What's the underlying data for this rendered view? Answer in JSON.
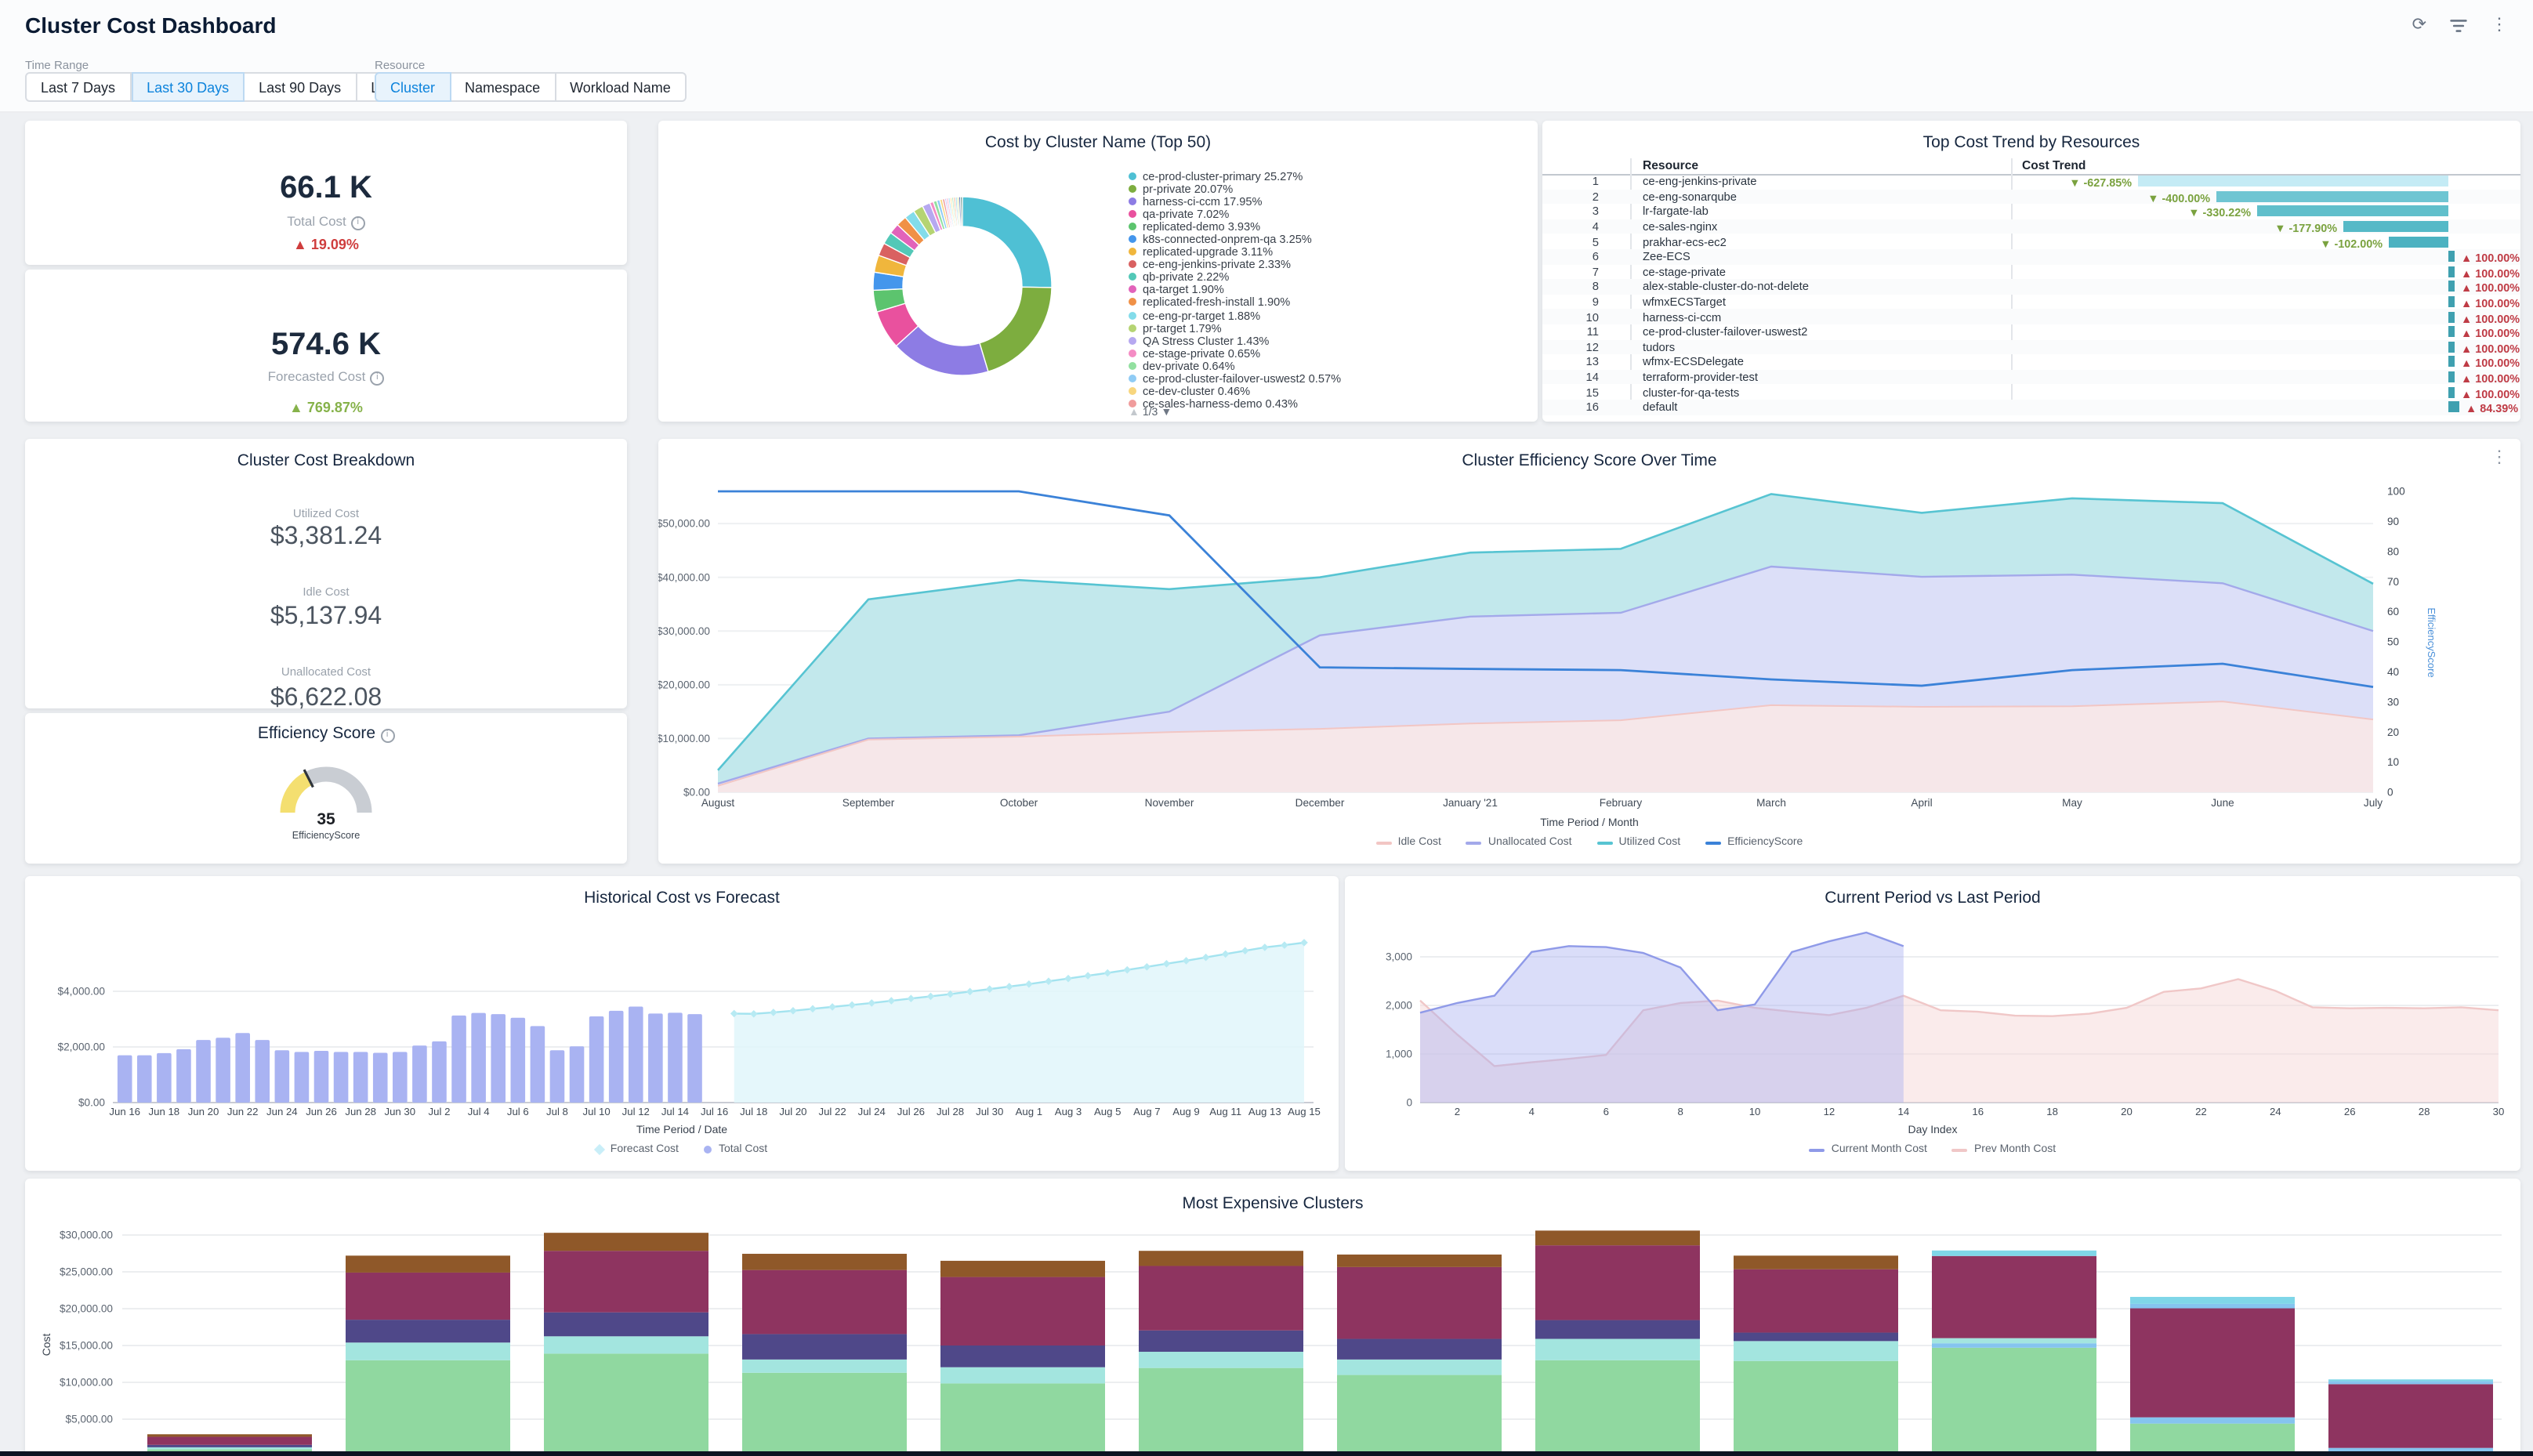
{
  "header": {
    "title": "Cluster Cost Dashboard"
  },
  "top_actions": {
    "refresh": "refresh-icon",
    "filter": "filter-icon",
    "menu": "kebab-menu-icon"
  },
  "filters": {
    "time_range": {
      "label": "Time Range",
      "options": [
        "Last 7 Days",
        "Last 30 Days",
        "Last 90 Days",
        "Last year"
      ],
      "selected": "Last 30 Days"
    },
    "resource": {
      "label": "Resource",
      "options": [
        "Cluster",
        "Namespace",
        "Workload Name"
      ],
      "selected": "Cluster"
    }
  },
  "kpis": [
    {
      "value": "66.1 K",
      "label": "Total Cost",
      "delta": "19.09%",
      "delta_direction": "up",
      "delta_color": "#cf3d3d"
    },
    {
      "value": "574.6 K",
      "label": "Forecasted Cost",
      "delta": "769.87%",
      "delta_direction": "up",
      "delta_color": "#86b24a"
    }
  ],
  "donut_panel": {
    "title": "Cost by Cluster Name (Top 50)",
    "pagination": "1/3",
    "chart_data": {
      "type": "pie",
      "slices": [
        {
          "label": "ce-prod-cluster-primary",
          "pct": "25.27",
          "color": "#4fc0d4"
        },
        {
          "label": "pr-private",
          "pct": "20.07",
          "color": "#7dad3f"
        },
        {
          "label": "harness-ci-ccm",
          "pct": "17.95",
          "color": "#8d7ce4"
        },
        {
          "label": "qa-private",
          "pct": "7.02",
          "color": "#e9519e"
        },
        {
          "label": "replicated-demo",
          "pct": "3.93",
          "color": "#5cc46e"
        },
        {
          "label": "k8s-connected-onprem-qa",
          "pct": "3.25",
          "color": "#4496ec"
        },
        {
          "label": "replicated-upgrade",
          "pct": "3.11",
          "color": "#f0b63c"
        },
        {
          "label": "ce-eng-jenkins-private",
          "pct": "2.33",
          "color": "#d96161"
        },
        {
          "label": "qb-private",
          "pct": "2.22",
          "color": "#53c8b7"
        },
        {
          "label": "qa-target",
          "pct": "1.90",
          "color": "#e263ba"
        },
        {
          "label": "replicated-fresh-install",
          "pct": "1.90",
          "color": "#f09147"
        },
        {
          "label": "ce-eng-pr-target",
          "pct": "1.88",
          "color": "#83dcea"
        },
        {
          "label": "pr-target",
          "pct": "1.79",
          "color": "#b5d473"
        },
        {
          "label": "QA Stress Cluster",
          "pct": "1.43",
          "color": "#b6a8f0"
        },
        {
          "label": "ce-stage-private",
          "pct": "0.65",
          "color": "#f48cc4"
        },
        {
          "label": "dev-private",
          "pct": "0.64",
          "color": "#92e0a0"
        },
        {
          "label": "ce-prod-cluster-failover-uswest2",
          "pct": "0.57",
          "color": "#90ccf5"
        },
        {
          "label": "ce-dev-cluster",
          "pct": "0.46",
          "color": "#f8d67e"
        },
        {
          "label": "ce-sales-harness-demo",
          "pct": "0.43",
          "color": "#f09c9c"
        }
      ],
      "other_slices": [
        {
          "pct": "0.32",
          "color": "#c3b3f2"
        },
        {
          "pct": "0.32",
          "color": "#f7a1c8"
        },
        {
          "pct": "0.32",
          "color": "#9fd9f0"
        },
        {
          "pct": "0.32",
          "color": "#ffe08f"
        },
        {
          "pct": "0.32",
          "color": "#a6e6b6"
        },
        {
          "pct": "0.32",
          "color": "#f2aa80"
        },
        {
          "pct": "0.32",
          "color": "#8fd0dd"
        },
        {
          "pct": "0.32",
          "color": "#d3e08a"
        },
        {
          "pct": "0.32",
          "color": "#39539f"
        },
        {
          "pct": "0.32",
          "color": "#2d6e63"
        }
      ]
    }
  },
  "trend_table": {
    "title": "Top Cost Trend by Resources",
    "columns": [
      "Resource",
      "Cost Trend"
    ],
    "up_color": "#bf3b45",
    "down_color": "#7aa23f",
    "rows": [
      {
        "rank": 1,
        "resource": "ce-eng-jenkins-private",
        "trend": "-627.85%",
        "dir": "down",
        "bar_len": 198,
        "bar_color": "#c4ebf5"
      },
      {
        "rank": 2,
        "resource": "ce-eng-sonarqube",
        "trend": "-400.00%",
        "dir": "down",
        "bar_len": 148,
        "bar_color": "#6fc5d2"
      },
      {
        "rank": 3,
        "resource": "lr-fargate-lab",
        "trend": "-330.22%",
        "dir": "down",
        "bar_len": 122,
        "bar_color": "#60bfcb"
      },
      {
        "rank": 4,
        "resource": "ce-sales-nginx",
        "trend": "-177.90%",
        "dir": "down",
        "bar_len": 67,
        "bar_color": "#55b9c7"
      },
      {
        "rank": 5,
        "resource": "prakhar-ecs-ec2",
        "trend": "-102.00%",
        "dir": "down",
        "bar_len": 38,
        "bar_color": "#4cb2c1"
      },
      {
        "rank": 6,
        "resource": "Zee-ECS",
        "trend": "100.00%",
        "dir": "up",
        "bar_len": 4,
        "bar_color": "#3fa0b0"
      },
      {
        "rank": 7,
        "resource": "ce-stage-private",
        "trend": "100.00%",
        "dir": "up",
        "bar_len": 4,
        "bar_color": "#3fa0b0"
      },
      {
        "rank": 8,
        "resource": "alex-stable-cluster-do-not-delete",
        "trend": "100.00%",
        "dir": "up",
        "bar_len": 4,
        "bar_color": "#3fa0b0"
      },
      {
        "rank": 9,
        "resource": "wfmxECSTarget",
        "trend": "100.00%",
        "dir": "up",
        "bar_len": 4,
        "bar_color": "#3fa0b0"
      },
      {
        "rank": 10,
        "resource": "harness-ci-ccm",
        "trend": "100.00%",
        "dir": "up",
        "bar_len": 4,
        "bar_color": "#3fa0b0"
      },
      {
        "rank": 11,
        "resource": "ce-prod-cluster-failover-uswest2",
        "trend": "100.00%",
        "dir": "up",
        "bar_len": 4,
        "bar_color": "#3fa0b0"
      },
      {
        "rank": 12,
        "resource": "tudors",
        "trend": "100.00%",
        "dir": "up",
        "bar_len": 4,
        "bar_color": "#3fa0b0"
      },
      {
        "rank": 13,
        "resource": "wfmx-ECSDelegate",
        "trend": "100.00%",
        "dir": "up",
        "bar_len": 4,
        "bar_color": "#3fa0b0"
      },
      {
        "rank": 14,
        "resource": "terraform-provider-test",
        "trend": "100.00%",
        "dir": "up",
        "bar_len": 4,
        "bar_color": "#3fa0b0"
      },
      {
        "rank": 15,
        "resource": "cluster-for-qa-tests",
        "trend": "100.00%",
        "dir": "up",
        "bar_len": 4,
        "bar_color": "#3fa0b0"
      },
      {
        "rank": 16,
        "resource": "default",
        "trend": "84.39%",
        "dir": "up",
        "bar_len": 7,
        "bar_color": "#3fa0b0"
      }
    ]
  },
  "breakdown": {
    "title": "Cluster Cost Breakdown",
    "items": [
      {
        "label": "Utilized Cost",
        "value": "$3,381.24"
      },
      {
        "label": "Idle Cost",
        "value": "$5,137.94"
      },
      {
        "label": "Unallocated Cost",
        "value": "$6,622.08"
      }
    ]
  },
  "gauge": {
    "title": "Efficiency Score",
    "value": "35",
    "label": "EfficiencyScore",
    "pct": 35,
    "arc_color": "#f4df70",
    "track_color": "#c9cdd3",
    "tick_color": "#30353c"
  },
  "efficiency_chart": {
    "title": "Cluster Efficiency Score Over Time",
    "xlabel": "Time Period / Month",
    "y_right_label": "EfficiencyScore",
    "y_left_ticks": [
      "$0.00",
      "$10,000.00",
      "$20,000.00",
      "$30,000.00",
      "$40,000.00",
      "$50,000.00"
    ],
    "y_left_max": 56000,
    "chart_data": {
      "type": "area",
      "categories": [
        "August",
        "September",
        "October",
        "November",
        "December",
        "January '21",
        "February",
        "March",
        "April",
        "May",
        "June",
        "July"
      ],
      "series": [
        {
          "name": "Idle Cost",
          "axis": "left",
          "line": "#f2c6c4",
          "fill": "rgba(252,233,229,0.8)",
          "values": [
            1200,
            9800,
            10350,
            11200,
            11800,
            12800,
            13400,
            16200,
            15900,
            16000,
            16900,
            13550
          ]
        },
        {
          "name": "Unallocated Cost",
          "axis": "left",
          "line": "#a3a9ea",
          "fill": "#dcdff8",
          "values": [
            1600,
            10000,
            10600,
            15000,
            29200,
            32700,
            33400,
            42000,
            40100,
            40500,
            38900,
            30000
          ]
        },
        {
          "name": "Utilized Cost",
          "axis": "left",
          "line": "#57c4d2",
          "fill": "#c2e8ec",
          "values": [
            4100,
            35900,
            39500,
            37800,
            40000,
            44600,
            45300,
            55500,
            52000,
            54700,
            53800,
            38800
          ]
        },
        {
          "name": "EfficiencyScore",
          "axis": "right",
          "line": "#3b82d8",
          "values": [
            100,
            100,
            100,
            92,
            41.5,
            41,
            40.6,
            37.5,
            35.4,
            40.6,
            42.7,
            35
          ]
        }
      ],
      "y_right_range": [
        0,
        100
      ]
    }
  },
  "forecast_chart": {
    "title": "Historical Cost vs Forecast",
    "xlabel": "Time Period / Date",
    "y_ticks": [
      "$0.00",
      "$2,000.00",
      "$4,000.00"
    ],
    "bar_color": "#a9b3f2",
    "forecast_fill": "#e1f6fa",
    "forecast_line": "#a3e3ef",
    "legend": [
      {
        "name": "Forecast Cost",
        "color": "#c9eef8",
        "marker": "diamond"
      },
      {
        "name": "Total Cost",
        "color": "#a9b3f2",
        "marker": "dot"
      }
    ],
    "x_tick_labels": [
      "Jun 16",
      "Jun 18",
      "Jun 20",
      "Jun 22",
      "Jun 24",
      "Jun 26",
      "Jun 28",
      "Jun 30",
      "Jul 2",
      "Jul 4",
      "Jul 6",
      "Jul 8",
      "Jul 10",
      "Jul 12",
      "Jul 14",
      "Jul 16",
      "Jul 18",
      "Jul 20",
      "Jul 22",
      "Jul 24",
      "Jul 26",
      "Jul 28",
      "Jul 30",
      "Aug 1",
      "Aug 3",
      "Aug 5",
      "Aug 7",
      "Aug 9",
      "Aug 11",
      "Aug 13",
      "Aug 15"
    ],
    "chart_data": {
      "type": "bar",
      "total_cost_values": [
        1700,
        1700,
        1780,
        1920,
        2250,
        2330,
        2500,
        2250,
        1880,
        1820,
        1860,
        1820,
        1820,
        1790,
        1820,
        2050,
        2200,
        3130,
        3220,
        3180,
        3050,
        2750,
        1880,
        2020,
        3100,
        3300,
        3450,
        3200,
        3230,
        3180
      ],
      "forecast_values": [
        3200,
        3190,
        3240,
        3300,
        3370,
        3440,
        3510,
        3580,
        3660,
        3740,
        3820,
        3900,
        3990,
        4080,
        4170,
        4260,
        4360,
        4460,
        4560,
        4660,
        4770,
        4880,
        4990,
        5100,
        5220,
        5340,
        5460,
        5580,
        5660,
        5750
      ],
      "ylim": [
        0,
        7000
      ]
    }
  },
  "period_chart": {
    "title": "Current Period vs Last Period",
    "xlabel": "Day Index",
    "y_ticks": [
      "0",
      "1,000",
      "2,000",
      "3,000"
    ],
    "x_ticks": [
      2,
      4,
      6,
      8,
      10,
      12,
      14,
      16,
      18,
      20,
      22,
      24,
      26,
      28,
      30
    ],
    "chart_data": {
      "type": "area",
      "series": [
        {
          "name": "Prev Month Cost",
          "line": "#f0c7c7",
          "fill": "rgba(246,219,219,0.55)",
          "values": [
            2100,
            1400,
            750,
            830,
            900,
            980,
            1900,
            2050,
            2100,
            1950,
            1870,
            1800,
            1950,
            2200,
            1900,
            1870,
            1790,
            1780,
            1830,
            1950,
            2280,
            2350,
            2540,
            2300,
            1960,
            1940,
            1950,
            1940,
            1960,
            1900
          ]
        },
        {
          "name": "Current Month Cost",
          "line": "#8f9ae8",
          "fill": "rgba(167,174,240,0.42)",
          "values": [
            1850,
            2050,
            2200,
            3100,
            3220,
            3200,
            3080,
            2780,
            1900,
            2020,
            3100,
            3320,
            3500,
            3220
          ]
        }
      ],
      "ylim": [
        0,
        3700
      ]
    }
  },
  "expensive_chart": {
    "title": "Most Expensive Clusters",
    "ylabel": "Cost",
    "y_ticks": [
      "$5,000.00",
      "$10,000.00",
      "$15,000.00",
      "$20,000.00",
      "$25,000.00",
      "$30,000.00"
    ],
    "colors": {
      "green": "#90d8a0",
      "cyan": "#a3e5df",
      "indigo": "#4f4889",
      "maroon": "#8e3460",
      "brown": "#8f5829",
      "lightblue": "#85c4ef",
      "skyblue": "#7fd6e8"
    },
    "chart_data": {
      "type": "bar",
      "stacked": true,
      "bars": [
        {
          "segments": [
            [
              "green",
              900
            ],
            [
              "cyan",
              280
            ],
            [
              "indigo",
              330
            ],
            [
              "maroon",
              1100
            ],
            [
              "brown",
              340
            ]
          ]
        },
        {
          "segments": [
            [
              "green",
              13000
            ],
            [
              "cyan",
              2400
            ],
            [
              "indigo",
              3100
            ],
            [
              "maroon",
              6400
            ],
            [
              "brown",
              2300
            ]
          ]
        },
        {
          "segments": [
            [
              "green",
              13900
            ],
            [
              "cyan",
              2350
            ],
            [
              "indigo",
              3250
            ],
            [
              "maroon",
              8350
            ],
            [
              "brown",
              2450
            ]
          ]
        },
        {
          "segments": [
            [
              "green",
              11300
            ],
            [
              "cyan",
              1800
            ],
            [
              "indigo",
              3450
            ],
            [
              "maroon",
              8700
            ],
            [
              "brown",
              2200
            ]
          ]
        },
        {
          "segments": [
            [
              "green",
              9850
            ],
            [
              "cyan",
              2200
            ],
            [
              "indigo",
              2950
            ],
            [
              "maroon",
              9300
            ],
            [
              "brown",
              2200
            ]
          ]
        },
        {
          "segments": [
            [
              "green",
              11950
            ],
            [
              "cyan",
              2200
            ],
            [
              "indigo",
              2900
            ],
            [
              "maroon",
              8750
            ],
            [
              "brown",
              2050
            ]
          ]
        },
        {
          "segments": [
            [
              "green",
              11000
            ],
            [
              "cyan",
              2100
            ],
            [
              "indigo",
              2800
            ],
            [
              "maroon",
              9750
            ],
            [
              "brown",
              1700
            ]
          ]
        },
        {
          "segments": [
            [
              "green",
              13000
            ],
            [
              "cyan",
              2900
            ],
            [
              "indigo",
              2550
            ],
            [
              "maroon",
              10150
            ],
            [
              "brown",
              2000
            ]
          ]
        },
        {
          "segments": [
            [
              "green",
              12900
            ],
            [
              "cyan",
              2700
            ],
            [
              "indigo",
              1150
            ],
            [
              "maroon",
              8600
            ],
            [
              "brown",
              1850
            ]
          ]
        },
        {
          "segments": [
            [
              "green",
              14700
            ],
            [
              "lightblue",
              600
            ],
            [
              "cyan",
              700
            ],
            [
              "maroon",
              11150
            ],
            [
              "skyblue",
              750
            ]
          ]
        },
        {
          "segments": [
            [
              "green",
              4400
            ],
            [
              "lightblue",
              850
            ],
            [
              "maroon",
              14800
            ],
            [
              "lightblue",
              600
            ],
            [
              "skyblue",
              950
            ]
          ]
        },
        {
          "segments": [
            [
              "lightblue",
              1100
            ],
            [
              "maroon",
              8650
            ],
            [
              "lightblue",
              400
            ],
            [
              "skyblue",
              250
            ]
          ]
        }
      ],
      "ylim": [
        0,
        37700
      ]
    }
  }
}
